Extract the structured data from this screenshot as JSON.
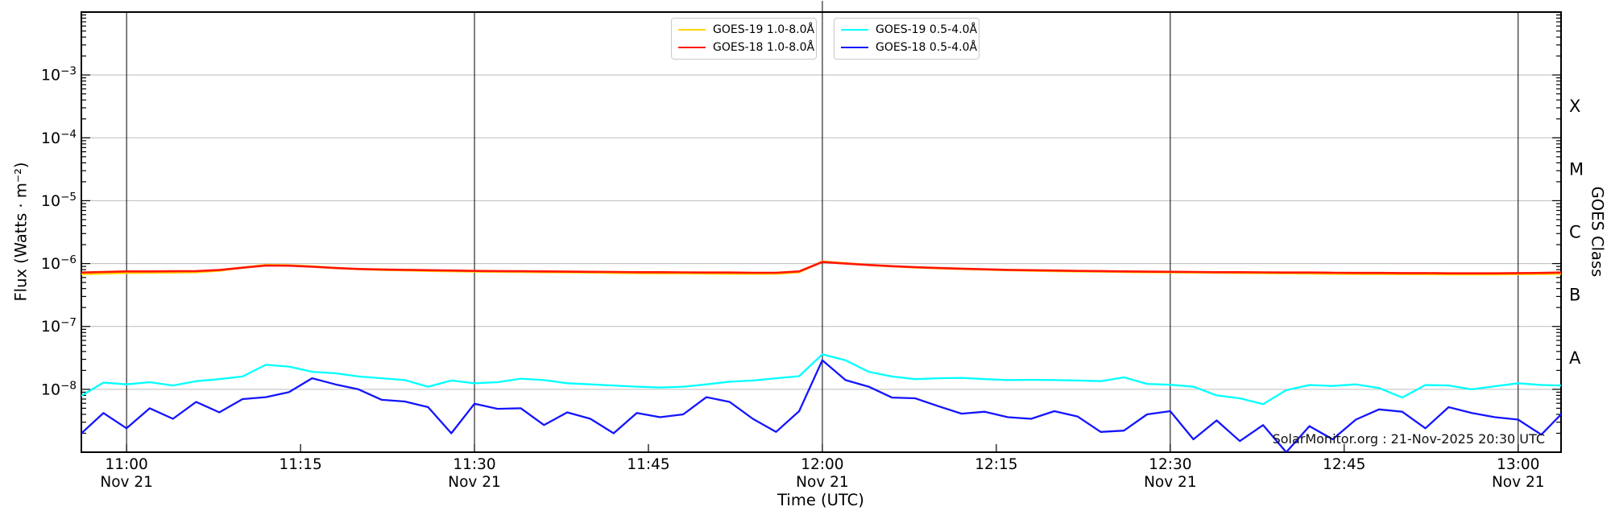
{
  "figure": {
    "watermark": "SolarMonitor.org : 21-Nov-2025 20:30 UTC",
    "background_color": "#ffffff",
    "gridline_color": "#bbbbbb",
    "time_gridline_color": "#000000"
  },
  "chart_data": {
    "type": "line",
    "xlabel": "Time (UTC)",
    "ylabel": "Flux (Watts · m⁻²)",
    "ylabel_right": "GOES Class",
    "x_unit": "minutes relative to 11:00 UTC on Nov 21",
    "x_range": [
      -3.9,
      123.7
    ],
    "y_scale": "log",
    "y_range": [
      1e-09,
      0.01
    ],
    "grid": true,
    "legend_position": "upper center",
    "x_ticks": [
      {
        "minutes": 0,
        "label": "11:00",
        "date": "Nov 21",
        "gridline": true
      },
      {
        "minutes": 15,
        "label": "11:15",
        "date": "",
        "gridline": false
      },
      {
        "minutes": 30,
        "label": "11:30",
        "date": "Nov 21",
        "gridline": true
      },
      {
        "minutes": 45,
        "label": "11:45",
        "date": "",
        "gridline": false
      },
      {
        "minutes": 60,
        "label": "12:00",
        "date": "Nov 21",
        "gridline": true
      },
      {
        "minutes": 75,
        "label": "12:15",
        "date": "",
        "gridline": false
      },
      {
        "minutes": 90,
        "label": "12:30",
        "date": "Nov 21",
        "gridline": true
      },
      {
        "minutes": 105,
        "label": "12:45",
        "date": "",
        "gridline": false
      },
      {
        "minutes": 120,
        "label": "13:00",
        "date": "Nov 21",
        "gridline": true
      }
    ],
    "y_ticks": [
      {
        "exp": -3,
        "label": "10⁻³"
      },
      {
        "exp": -4,
        "label": "10⁻⁴"
      },
      {
        "exp": -5,
        "label": "10⁻⁵"
      },
      {
        "exp": -6,
        "label": "10⁻⁶"
      },
      {
        "exp": -7,
        "label": "10⁻⁷"
      },
      {
        "exp": -8,
        "label": "10⁻⁸"
      }
    ],
    "right_axis_classes": [
      {
        "label": "X",
        "exp_center": -3.5
      },
      {
        "label": "M",
        "exp_center": -4.5
      },
      {
        "label": "C",
        "exp_center": -5.5
      },
      {
        "label": "B",
        "exp_center": -6.5
      },
      {
        "label": "A",
        "exp_center": -7.5
      }
    ],
    "x_minutes": [
      -3.9,
      -2,
      0,
      2,
      4,
      6,
      8,
      10,
      12,
      14,
      16,
      18,
      20,
      22,
      24,
      26,
      28,
      30,
      32,
      34,
      36,
      38,
      40,
      42,
      44,
      46,
      48,
      50,
      52,
      54,
      56,
      58,
      60,
      62,
      64,
      66,
      68,
      70,
      72,
      74,
      76,
      78,
      80,
      82,
      84,
      86,
      88,
      90,
      92,
      94,
      96,
      98,
      100,
      102,
      104,
      106,
      108,
      110,
      112,
      114,
      116,
      118,
      120,
      122,
      123.7
    ],
    "series": [
      {
        "id": "goes19-long",
        "name": "GOES-19 1.0-8.0Å",
        "color": "#ffd400",
        "width": 2.6,
        "values": [
          6.8e-07,
          6.95e-07,
          7.1e-07,
          7.15e-07,
          7.2e-07,
          7.3e-07,
          7.7e-07,
          8.6e-07,
          9.5e-07,
          9.4e-07,
          9e-07,
          8.5e-07,
          8.15e-07,
          7.95e-07,
          7.8e-07,
          7.65e-07,
          7.55e-07,
          7.45e-07,
          7.4e-07,
          7.35e-07,
          7.3e-07,
          7.25e-07,
          7.2e-07,
          7.1e-07,
          7.05e-07,
          7e-07,
          7e-07,
          6.95e-07,
          6.9e-07,
          6.9e-07,
          6.9e-07,
          7.3e-07,
          1.08e-06,
          1.01e-06,
          9.5e-07,
          9.05e-07,
          8.7e-07,
          8.4e-07,
          8.2e-07,
          8e-07,
          7.85e-07,
          7.7e-07,
          7.6e-07,
          7.5e-07,
          7.45e-07,
          7.35e-07,
          7.3e-07,
          7.25e-07,
          7.2e-07,
          7.15e-07,
          7.1e-07,
          7.05e-07,
          7e-07,
          6.95e-07,
          6.9e-07,
          6.85e-07,
          6.85e-07,
          6.8e-07,
          6.8e-07,
          6.75e-07,
          6.75e-07,
          6.75e-07,
          6.8e-07,
          6.85e-07,
          6.9e-07
        ]
      },
      {
        "id": "goes18-long",
        "name": "GOES-18 1.0-8.0Å",
        "color": "#ff1500",
        "width": 2.6,
        "values": [
          7.2e-07,
          7.35e-07,
          7.5e-07,
          7.5e-07,
          7.55e-07,
          7.6e-07,
          7.9e-07,
          8.6e-07,
          9.3e-07,
          9.25e-07,
          8.9e-07,
          8.5e-07,
          8.2e-07,
          8.05e-07,
          7.95e-07,
          7.85e-07,
          7.75e-07,
          7.65e-07,
          7.6e-07,
          7.55e-07,
          7.5e-07,
          7.45e-07,
          7.4e-07,
          7.35e-07,
          7.3e-07,
          7.3e-07,
          7.25e-07,
          7.2e-07,
          7.2e-07,
          7.15e-07,
          7.15e-07,
          7.5e-07,
          1.06e-06,
          1e-06,
          9.5e-07,
          9.1e-07,
          8.75e-07,
          8.5e-07,
          8.3e-07,
          8.1e-07,
          7.95e-07,
          7.85e-07,
          7.75e-07,
          7.65e-07,
          7.6e-07,
          7.5e-07,
          7.45e-07,
          7.4e-07,
          7.35e-07,
          7.3e-07,
          7.3e-07,
          7.25e-07,
          7.2e-07,
          7.2e-07,
          7.15e-07,
          7.1e-07,
          7.1e-07,
          7.05e-07,
          7.05e-07,
          7e-07,
          7e-07,
          7e-07,
          7.05e-07,
          7.1e-07,
          7.2e-07
        ]
      },
      {
        "id": "goes19-short",
        "name": "GOES-19 0.5-4.0Å",
        "color": "#00ffff",
        "width": 2.3,
        "values": [
          7.9e-09,
          1.28e-08,
          1.2e-08,
          1.3e-08,
          1.15e-08,
          1.35e-08,
          1.45e-08,
          1.6e-08,
          2.45e-08,
          2.3e-08,
          1.9e-08,
          1.8e-08,
          1.6e-08,
          1.5e-08,
          1.4e-08,
          1.1e-08,
          1.38e-08,
          1.25e-08,
          1.3e-08,
          1.48e-08,
          1.4e-08,
          1.25e-08,
          1.2e-08,
          1.15e-08,
          1.1e-08,
          1.07e-08,
          1.1e-08,
          1.2e-08,
          1.32e-08,
          1.38e-08,
          1.5e-08,
          1.62e-08,
          3.6e-08,
          2.9e-08,
          1.9e-08,
          1.6e-08,
          1.45e-08,
          1.5e-08,
          1.52e-08,
          1.45e-08,
          1.4e-08,
          1.42e-08,
          1.4e-08,
          1.38e-08,
          1.35e-08,
          1.55e-08,
          1.22e-08,
          1.18e-08,
          1.1e-08,
          8e-09,
          7.2e-09,
          5.8e-09,
          9.7e-09,
          1.17e-08,
          1.13e-08,
          1.2e-08,
          1.05e-08,
          7.4e-09,
          1.17e-08,
          1.15e-08,
          1e-08,
          1.12e-08,
          1.25e-08,
          1.17e-08,
          1.15e-08
        ]
      },
      {
        "id": "goes18-short",
        "name": "GOES-18 0.5-4.0Å",
        "color": "#1414ff",
        "width": 2.3,
        "values": [
          2e-09,
          4.2e-09,
          2.4e-09,
          5e-09,
          3.4e-09,
          6.3e-09,
          4.3e-09,
          7e-09,
          7.5e-09,
          9e-09,
          1.5e-08,
          1.2e-08,
          1e-08,
          6.8e-09,
          6.4e-09,
          5.2e-09,
          2e-09,
          5.9e-09,
          4.9e-09,
          5e-09,
          2.7e-09,
          4.3e-09,
          3.4e-09,
          2e-09,
          4.2e-09,
          3.6e-09,
          4e-09,
          7.5e-09,
          6.3e-09,
          3.4e-09,
          2.1e-09,
          4.5e-09,
          2.9e-08,
          1.4e-08,
          1.1e-08,
          7.4e-09,
          7.2e-09,
          5.4e-09,
          4.1e-09,
          4.4e-09,
          3.6e-09,
          3.4e-09,
          4.5e-09,
          3.7e-09,
          2.1e-09,
          2.2e-09,
          4e-09,
          4.5e-09,
          1.6e-09,
          3.2e-09,
          1.5e-09,
          2.7e-09,
          1e-09,
          2.6e-09,
          1.6e-09,
          3.3e-09,
          4.8e-09,
          4.4e-09,
          2.4e-09,
          5.2e-09,
          4.2e-09,
          3.6e-09,
          3.3e-09,
          1.9e-09,
          4e-09
        ]
      }
    ]
  }
}
